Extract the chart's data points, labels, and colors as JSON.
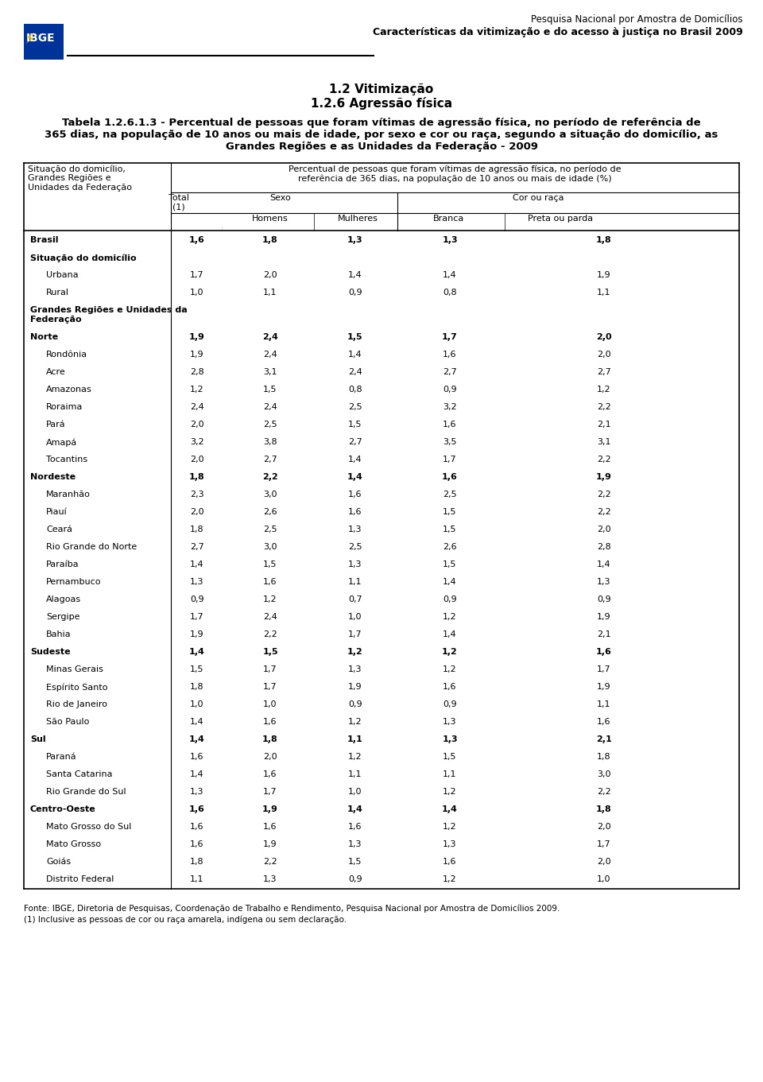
{
  "header_line1": "Pesquisa Nacional por Amostra de Domicílios",
  "header_line2": "Características da vitimização e do acesso à justiça no Brasil 2009",
  "title1": "1.2 Vitimização",
  "title2": "1.2.6 Agressão física",
  "title3": "Tabela 1.2.6.1.3 - Percentual de pessoas que foram vítimas de agressão física, no período de referência de",
  "title4": "365 dias, na população de 10 anos ou mais de idade, por sexo e cor ou raça, segundo a situação do domicílio, as",
  "title5": "Grandes Regiões e as Unidades da Federação - 2009",
  "col_header_main": "Percentual de pessoas que foram vítimas de agressão física, no período de\nreferência de 365 dias, na população de 10 anos ou mais de idade (%)",
  "col_left": "Situação do domicílio,\nGrandes Regiões e\nUnidades da Federação",
  "col_total": "Total\n(1)",
  "col_sexo": "Sexo",
  "col_cor": "Cor ou raça",
  "col_homens": "Homens",
  "col_mulheres": "Mulheres",
  "col_branca": "Branca",
  "col_preta": "Preta ou parda",
  "footer1": "Fonte: IBGE, Diretoria de Pesquisas, Coordenação de Trabalho e Rendimento, Pesquisa Nacional por Amostra de Domicílios 2009.",
  "footer2": "(1) Inclusive as pessoas de cor ou raça amarela, indígena ou sem declaração.",
  "rows": [
    {
      "label": "Brasil",
      "total": "1,6",
      "homens": "1,8",
      "mulheres": "1,3",
      "branca": "1,3",
      "preta": "1,8",
      "bold": true,
      "indent": 0
    },
    {
      "label": "Situação do domicílio",
      "total": "",
      "homens": "",
      "mulheres": "",
      "branca": "",
      "preta": "",
      "bold": true,
      "indent": 0,
      "section": true
    },
    {
      "label": "Urbana",
      "total": "1,7",
      "homens": "2,0",
      "mulheres": "1,4",
      "branca": "1,4",
      "preta": "1,9",
      "bold": false,
      "indent": 1
    },
    {
      "label": "Rural",
      "total": "1,0",
      "homens": "1,1",
      "mulheres": "0,9",
      "branca": "0,8",
      "preta": "1,1",
      "bold": false,
      "indent": 1
    },
    {
      "label": "Grandes Regiões e Unidades da\nFederação",
      "total": "",
      "homens": "",
      "mulheres": "",
      "branca": "",
      "preta": "",
      "bold": true,
      "indent": 0,
      "section": true
    },
    {
      "label": "Norte",
      "total": "1,9",
      "homens": "2,4",
      "mulheres": "1,5",
      "branca": "1,7",
      "preta": "2,0",
      "bold": true,
      "indent": 0
    },
    {
      "label": "Rondônia",
      "total": "1,9",
      "homens": "2,4",
      "mulheres": "1,4",
      "branca": "1,6",
      "preta": "2,0",
      "bold": false,
      "indent": 1
    },
    {
      "label": "Acre",
      "total": "2,8",
      "homens": "3,1",
      "mulheres": "2,4",
      "branca": "2,7",
      "preta": "2,7",
      "bold": false,
      "indent": 1
    },
    {
      "label": "Amazonas",
      "total": "1,2",
      "homens": "1,5",
      "mulheres": "0,8",
      "branca": "0,9",
      "preta": "1,2",
      "bold": false,
      "indent": 1
    },
    {
      "label": "Roraima",
      "total": "2,4",
      "homens": "2,4",
      "mulheres": "2,5",
      "branca": "3,2",
      "preta": "2,2",
      "bold": false,
      "indent": 1
    },
    {
      "label": "Pará",
      "total": "2,0",
      "homens": "2,5",
      "mulheres": "1,5",
      "branca": "1,6",
      "preta": "2,1",
      "bold": false,
      "indent": 1
    },
    {
      "label": "Amapá",
      "total": "3,2",
      "homens": "3,8",
      "mulheres": "2,7",
      "branca": "3,5",
      "preta": "3,1",
      "bold": false,
      "indent": 1
    },
    {
      "label": "Tocantins",
      "total": "2,0",
      "homens": "2,7",
      "mulheres": "1,4",
      "branca": "1,7",
      "preta": "2,2",
      "bold": false,
      "indent": 1
    },
    {
      "label": "Nordeste",
      "total": "1,8",
      "homens": "2,2",
      "mulheres": "1,4",
      "branca": "1,6",
      "preta": "1,9",
      "bold": true,
      "indent": 0
    },
    {
      "label": "Maranhão",
      "total": "2,3",
      "homens": "3,0",
      "mulheres": "1,6",
      "branca": "2,5",
      "preta": "2,2",
      "bold": false,
      "indent": 1
    },
    {
      "label": "Piauí",
      "total": "2,0",
      "homens": "2,6",
      "mulheres": "1,6",
      "branca": "1,5",
      "preta": "2,2",
      "bold": false,
      "indent": 1
    },
    {
      "label": "Ceará",
      "total": "1,8",
      "homens": "2,5",
      "mulheres": "1,3",
      "branca": "1,5",
      "preta": "2,0",
      "bold": false,
      "indent": 1
    },
    {
      "label": "Rio Grande do Norte",
      "total": "2,7",
      "homens": "3,0",
      "mulheres": "2,5",
      "branca": "2,6",
      "preta": "2,8",
      "bold": false,
      "indent": 1
    },
    {
      "label": "Paraíba",
      "total": "1,4",
      "homens": "1,5",
      "mulheres": "1,3",
      "branca": "1,5",
      "preta": "1,4",
      "bold": false,
      "indent": 1
    },
    {
      "label": "Pernambuco",
      "total": "1,3",
      "homens": "1,6",
      "mulheres": "1,1",
      "branca": "1,4",
      "preta": "1,3",
      "bold": false,
      "indent": 1
    },
    {
      "label": "Alagoas",
      "total": "0,9",
      "homens": "1,2",
      "mulheres": "0,7",
      "branca": "0,9",
      "preta": "0,9",
      "bold": false,
      "indent": 1
    },
    {
      "label": "Sergipe",
      "total": "1,7",
      "homens": "2,4",
      "mulheres": "1,0",
      "branca": "1,2",
      "preta": "1,9",
      "bold": false,
      "indent": 1
    },
    {
      "label": "Bahia",
      "total": "1,9",
      "homens": "2,2",
      "mulheres": "1,7",
      "branca": "1,4",
      "preta": "2,1",
      "bold": false,
      "indent": 1
    },
    {
      "label": "Sudeste",
      "total": "1,4",
      "homens": "1,5",
      "mulheres": "1,2",
      "branca": "1,2",
      "preta": "1,6",
      "bold": true,
      "indent": 0
    },
    {
      "label": "Minas Gerais",
      "total": "1,5",
      "homens": "1,7",
      "mulheres": "1,3",
      "branca": "1,2",
      "preta": "1,7",
      "bold": false,
      "indent": 1
    },
    {
      "label": "Espírito Santo",
      "total": "1,8",
      "homens": "1,7",
      "mulheres": "1,9",
      "branca": "1,6",
      "preta": "1,9",
      "bold": false,
      "indent": 1
    },
    {
      "label": "Rio de Janeiro",
      "total": "1,0",
      "homens": "1,0",
      "mulheres": "0,9",
      "branca": "0,9",
      "preta": "1,1",
      "bold": false,
      "indent": 1
    },
    {
      "label": "São Paulo",
      "total": "1,4",
      "homens": "1,6",
      "mulheres": "1,2",
      "branca": "1,3",
      "preta": "1,6",
      "bold": false,
      "indent": 1
    },
    {
      "label": "Sul",
      "total": "1,4",
      "homens": "1,8",
      "mulheres": "1,1",
      "branca": "1,3",
      "preta": "2,1",
      "bold": true,
      "indent": 0
    },
    {
      "label": "Paraná",
      "total": "1,6",
      "homens": "2,0",
      "mulheres": "1,2",
      "branca": "1,5",
      "preta": "1,8",
      "bold": false,
      "indent": 1
    },
    {
      "label": "Santa Catarina",
      "total": "1,4",
      "homens": "1,6",
      "mulheres": "1,1",
      "branca": "1,1",
      "preta": "3,0",
      "bold": false,
      "indent": 1
    },
    {
      "label": "Rio Grande do Sul",
      "total": "1,3",
      "homens": "1,7",
      "mulheres": "1,0",
      "branca": "1,2",
      "preta": "2,2",
      "bold": false,
      "indent": 1
    },
    {
      "label": "Centro-Oeste",
      "total": "1,6",
      "homens": "1,9",
      "mulheres": "1,4",
      "branca": "1,4",
      "preta": "1,8",
      "bold": true,
      "indent": 0
    },
    {
      "label": "Mato Grosso do Sul",
      "total": "1,6",
      "homens": "1,6",
      "mulheres": "1,6",
      "branca": "1,2",
      "preta": "2,0",
      "bold": false,
      "indent": 1
    },
    {
      "label": "Mato Grosso",
      "total": "1,6",
      "homens": "1,9",
      "mulheres": "1,3",
      "branca": "1,3",
      "preta": "1,7",
      "bold": false,
      "indent": 1
    },
    {
      "label": "Goiás",
      "total": "1,8",
      "homens": "2,2",
      "mulheres": "1,5",
      "branca": "1,6",
      "preta": "2,0",
      "bold": false,
      "indent": 1
    },
    {
      "label": "Distrito Federal",
      "total": "1,1",
      "homens": "1,3",
      "mulheres": "0,9",
      "branca": "1,2",
      "preta": "1,0",
      "bold": false,
      "indent": 1
    }
  ],
  "bg_color": "#ffffff",
  "text_color": "#000000",
  "header_color": "#003399",
  "line_color": "#000000"
}
